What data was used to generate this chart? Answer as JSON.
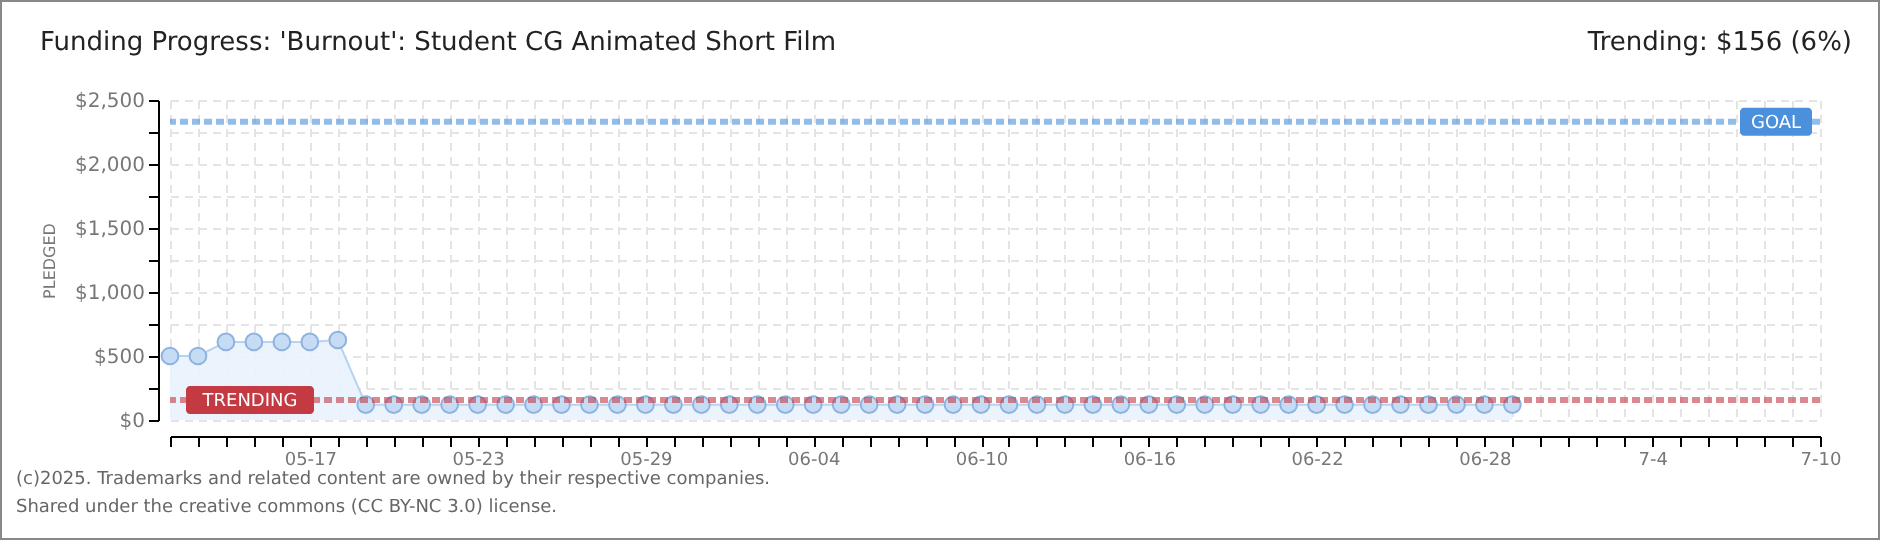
{
  "chart_data": {
    "type": "area",
    "title": "Funding Progress: 'Burnout': Student CG Animated Short Film",
    "ylabel": "PLEDGED",
    "annotations": [
      "Trending: $156 (6%)",
      "(c)2025. Trademarks and related content are owned by their respective companies.",
      "Shared under the creative commons (CC BY-NC 3.0) license."
    ],
    "x": [
      "--05-12",
      "--05-13",
      "--05-14",
      "--05-15",
      "--05-16",
      "--05-17",
      "--05-18",
      "--05-19",
      "--05-20",
      "--05-21",
      "--05-22",
      "--05-23",
      "--05-24",
      "--05-25",
      "--05-26",
      "--05-27",
      "--05-28",
      "--05-29",
      "--05-30",
      "--05-31",
      "--06-01",
      "--06-02",
      "--06-03",
      "--06-04",
      "--06-05",
      "--06-06",
      "--06-07",
      "--06-08",
      "--06-09",
      "--06-10",
      "--06-11",
      "--06-12",
      "--06-13",
      "--06-14",
      "--06-15",
      "--06-16",
      "--06-17",
      "--06-18",
      "--06-19",
      "--06-20",
      "--06-21",
      "--06-22",
      "--06-23",
      "--06-24",
      "--06-25",
      "--06-26",
      "--06-27",
      "--06-28",
      "--06-29"
    ],
    "series": [
      {
        "color": "#b7d3f2",
        "values": [
          500,
          500,
          610,
          610,
          610,
          610,
          625,
          120,
          120,
          120,
          120,
          120,
          120,
          120,
          120,
          120,
          120,
          120,
          120,
          120,
          120,
          120,
          120,
          120,
          120,
          120,
          120,
          120,
          120,
          120,
          120,
          120,
          120,
          120,
          120,
          120,
          120,
          120,
          120,
          120,
          120,
          120,
          120,
          120,
          120,
          120,
          120,
          120,
          120
        ]
      }
    ],
    "xlim": [
      "--05-12",
      "--07-10"
    ],
    "xticks": [
      {
        "value": "--05-12",
        "label": null
      },
      {
        "value": "--05-13",
        "label": null
      },
      {
        "value": "--05-14",
        "label": null
      },
      {
        "value": "--05-15",
        "label": null
      },
      {
        "value": "--05-16",
        "label": null
      },
      {
        "value": "--05-17",
        "label": "05-17"
      },
      {
        "value": "--05-18",
        "label": null
      },
      {
        "value": "--05-19",
        "label": null
      },
      {
        "value": "--05-20",
        "label": null
      },
      {
        "value": "--05-21",
        "label": null
      },
      {
        "value": "--05-22",
        "label": null
      },
      {
        "value": "--05-23",
        "label": "05-23"
      },
      {
        "value": "--05-24",
        "label": null
      },
      {
        "value": "--05-25",
        "label": null
      },
      {
        "value": "--05-26",
        "label": null
      },
      {
        "value": "--05-27",
        "label": null
      },
      {
        "value": "--05-28",
        "label": null
      },
      {
        "value": "--05-29",
        "label": "05-29"
      },
      {
        "value": "--05-30",
        "label": null
      },
      {
        "value": "--05-31",
        "label": null
      },
      {
        "value": "--06-01",
        "label": null
      },
      {
        "value": "--06-02",
        "label": null
      },
      {
        "value": "--06-03",
        "label": null
      },
      {
        "value": "--06-04",
        "label": "06-04"
      },
      {
        "value": "--06-05",
        "label": null
      },
      {
        "value": "--06-06",
        "label": null
      },
      {
        "value": "--06-07",
        "label": null
      },
      {
        "value": "--06-08",
        "label": null
      },
      {
        "value": "--06-09",
        "label": null
      },
      {
        "value": "--06-10",
        "label": "06-10"
      },
      {
        "value": "--06-11",
        "label": null
      },
      {
        "value": "--06-12",
        "label": null
      },
      {
        "value": "--06-13",
        "label": null
      },
      {
        "value": "--06-14",
        "label": null
      },
      {
        "value": "--06-15",
        "label": null
      },
      {
        "value": "--06-16",
        "label": "06-16"
      },
      {
        "value": "--06-17",
        "label": null
      },
      {
        "value": "--06-18",
        "label": null
      },
      {
        "value": "--06-19",
        "label": null
      },
      {
        "value": "--06-20",
        "label": null
      },
      {
        "value": "--06-21",
        "label": null
      },
      {
        "value": "--06-22",
        "label": "06-22"
      },
      {
        "value": "--06-23",
        "label": null
      },
      {
        "value": "--06-24",
        "label": null
      },
      {
        "value": "--06-25",
        "label": null
      },
      {
        "value": "--06-26",
        "label": null
      },
      {
        "value": "--06-27",
        "label": null
      },
      {
        "value": "--06-28",
        "label": "06-28"
      },
      {
        "value": "--06-29",
        "label": null
      },
      {
        "value": "--06-30",
        "label": null
      },
      {
        "value": "--07-01",
        "label": null
      },
      {
        "value": "--07-02",
        "label": null
      },
      {
        "value": "--07-03",
        "label": null
      },
      {
        "value": "--07-04",
        "label": "7-4"
      },
      {
        "value": "--07-05",
        "label": null
      },
      {
        "value": "--07-06",
        "label": null
      },
      {
        "value": "--07-07",
        "label": null
      },
      {
        "value": "--07-08",
        "label": null
      },
      {
        "value": "--07-09",
        "label": null
      },
      {
        "value": "--07-10",
        "label": "7-10"
      }
    ],
    "ylim": [
      0,
      2500
    ],
    "yticks": [
      {
        "value": 0,
        "label": "$0"
      },
      {
        "value": 250,
        "label": null
      },
      {
        "value": 500,
        "label": "$500"
      },
      {
        "value": 750,
        "label": null
      },
      {
        "value": 1000,
        "label": "$1,000"
      },
      {
        "value": 1250,
        "label": null
      },
      {
        "value": 1500,
        "label": "$1,500"
      },
      {
        "value": 1750,
        "label": null
      },
      {
        "value": 2000,
        "label": "$2,000"
      },
      {
        "value": 2250,
        "label": null
      },
      {
        "value": 2500,
        "label": "$2,500"
      }
    ],
    "ref_lines": [
      {
        "axis": "y",
        "value": 2330,
        "label": "GOAL",
        "color": "#4a90dc",
        "line_style": "dashed"
      },
      {
        "axis": "y",
        "value": 156,
        "label": "TRENDING",
        "color": "#c33a42",
        "line_style": "dashed"
      }
    ],
    "grid": true,
    "marker": "circle"
  }
}
